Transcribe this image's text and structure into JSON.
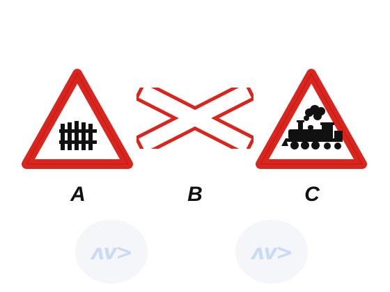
{
  "signs": [
    {
      "id": "A",
      "label": "A",
      "icon": "railway-crossing-with-barrier-icon"
    },
    {
      "id": "B",
      "label": "B",
      "icon": "saint-andrews-cross-icon"
    },
    {
      "id": "C",
      "label": "C",
      "icon": "railway-crossing-without-barrier-icon"
    }
  ],
  "watermarks": [
    {
      "text": "ʌv>",
      "icon": "watermark-logo"
    },
    {
      "text": "ʌv>",
      "icon": "watermark-logo"
    }
  ],
  "colors": {
    "border": "#d9251d",
    "fill": "#ffffff",
    "symbol": "#111111"
  }
}
